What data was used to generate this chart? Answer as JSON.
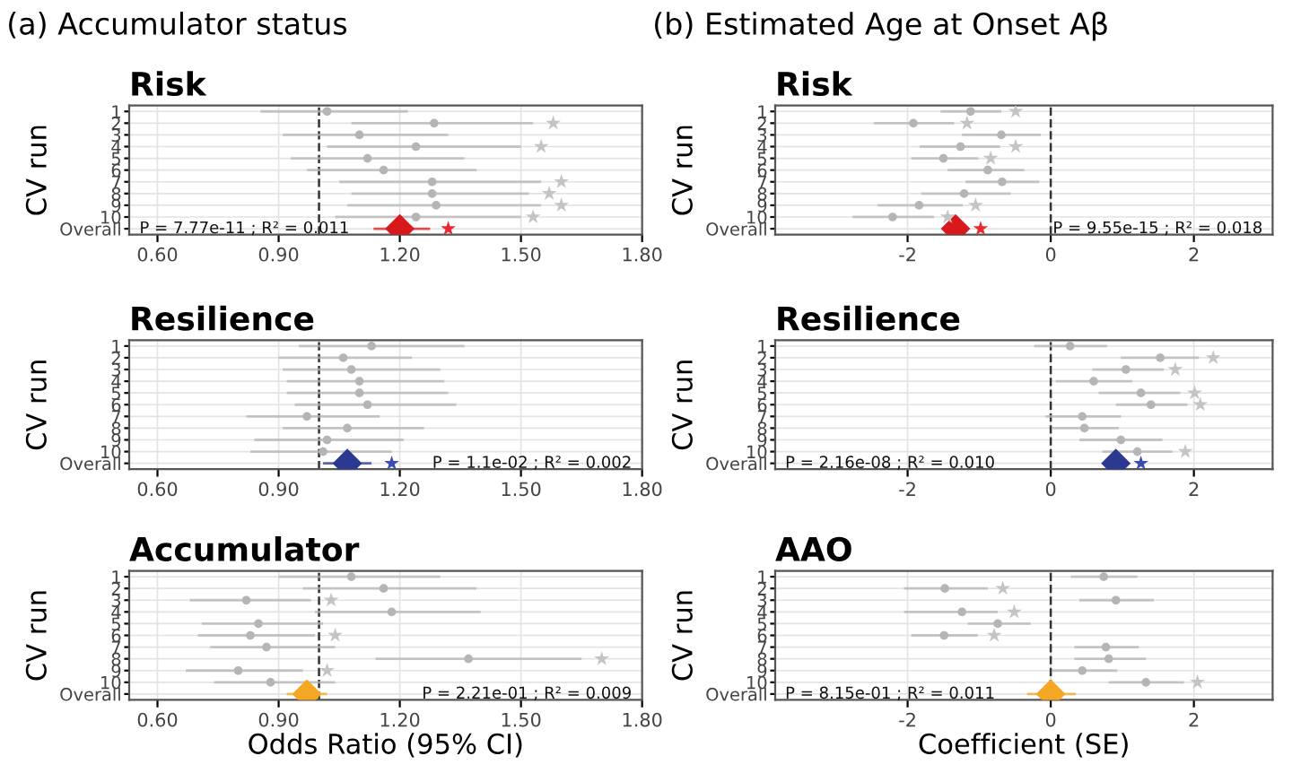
{
  "chart_data": [
    {
      "type": "scatter",
      "orientation": "horizontal",
      "subtitle": "(a) Accumulator status",
      "title": "Risk",
      "ylabel": "CV run",
      "categories": [
        "1",
        "2",
        "3",
        "4",
        "5",
        "6",
        "7",
        "8",
        "9",
        "10",
        "Overall"
      ],
      "xlim": [
        0.53,
        1.8
      ],
      "xticks": [
        {
          "value": 0.6,
          "label": "0.60"
        },
        {
          "value": 0.9,
          "label": "0.90"
        },
        {
          "value": 1.2,
          "label": "1.20"
        },
        {
          "value": 1.5,
          "label": "1.50"
        },
        {
          "value": 1.8,
          "label": "1.80"
        }
      ],
      "grid": true,
      "ref_lines": [
        {
          "axis": "x",
          "value": 1,
          "line_style": "dashed",
          "color": "#333333"
        }
      ],
      "annotations": [
        "P = 7.77e-11 ; R² = 0.011"
      ],
      "series": [
        {
          "marker": "circle",
          "color": "#b5b5b5",
          "values": [
            1.02,
            1.285,
            1.1,
            1.24,
            1.12,
            1.16,
            1.28,
            1.28,
            1.29,
            1.24,
            null
          ],
          "errors": [
            [
              0.855,
              1.22
            ],
            [
              1.08,
              1.53
            ],
            [
              0.91,
              1.32
            ],
            [
              1.02,
              1.5
            ],
            [
              0.93,
              1.36
            ],
            [
              0.97,
              1.39
            ],
            [
              1.05,
              1.55
            ],
            [
              1.08,
              1.52
            ],
            [
              1.07,
              1.55
            ],
            [
              1.04,
              1.5
            ],
            null
          ]
        },
        {
          "marker": "diamond",
          "color": "#d7191c",
          "values": [
            null,
            null,
            null,
            null,
            null,
            null,
            null,
            null,
            null,
            null,
            1.2
          ],
          "errors": [
            null,
            null,
            null,
            null,
            null,
            null,
            null,
            null,
            null,
            null,
            [
              1.135,
              1.275
            ]
          ]
        },
        {
          "marker": "star",
          "colors": [
            "#c4c4c4",
            "#c4c4c4",
            "#c4c4c4",
            "#c4c4c4",
            "#c4c4c4",
            "#c4c4c4",
            "#c4c4c4",
            "#c4c4c4",
            "#c4c4c4",
            "#c4c4c4",
            "#e8292d"
          ],
          "values": [
            null,
            1.58,
            null,
            1.55,
            null,
            null,
            1.6,
            1.57,
            1.6,
            1.53,
            1.32
          ]
        }
      ]
    },
    {
      "type": "scatter",
      "orientation": "horizontal",
      "subtitle": "(b) Estimated Age at Onset Aβ",
      "title": "Risk",
      "ylabel": "CV run",
      "categories": [
        "1",
        "2",
        "3",
        "4",
        "5",
        "6",
        "7",
        "8",
        "9",
        "10",
        "Overall"
      ],
      "xlim": [
        -3.85,
        3.1
      ],
      "xticks": [
        -2,
        0,
        2
      ],
      "grid": true,
      "ref_lines": [
        {
          "axis": "x",
          "value": 0,
          "line_style": "dashed",
          "color": "#333333"
        }
      ],
      "annotations": [
        "P = 9.55e-15 ; R² = 0.018"
      ],
      "series": [
        {
          "marker": "circle",
          "color": "#b5b5b5",
          "values": [
            -1.12,
            -1.92,
            -0.69,
            -1.26,
            -1.5,
            -0.88,
            -0.68,
            -1.21,
            -1.84,
            -2.21,
            null
          ],
          "errors": [
            [
              -1.54,
              -0.69
            ],
            [
              -2.47,
              -1.35
            ],
            [
              -1.24,
              -0.14
            ],
            [
              -1.83,
              -0.71
            ],
            [
              -1.95,
              -1.01
            ],
            [
              -1.44,
              -0.37
            ],
            [
              -1.19,
              -0.16
            ],
            [
              -1.81,
              -0.56
            ],
            [
              -2.42,
              -1.23
            ],
            [
              -2.77,
              -1.63
            ],
            null
          ]
        },
        {
          "marker": "diamond",
          "color": "#d7191c",
          "values": [
            null,
            null,
            null,
            null,
            null,
            null,
            null,
            null,
            null,
            null,
            -1.33
          ]
        },
        {
          "marker": "star",
          "colors": [
            "#c4c4c4",
            "#c4c4c4",
            "#c4c4c4",
            "#c4c4c4",
            "#c4c4c4",
            "#c4c4c4",
            "#c4c4c4",
            "#c4c4c4",
            "#c4c4c4",
            "#c4c4c4",
            "#e8292d"
          ],
          "values": [
            -0.49,
            -1.17,
            null,
            -0.49,
            -0.84,
            null,
            null,
            null,
            -1.05,
            -1.44,
            -0.98
          ]
        }
      ]
    },
    {
      "type": "scatter",
      "orientation": "horizontal",
      "title": "Resilience",
      "ylabel": "CV run",
      "categories": [
        "1",
        "2",
        "3",
        "4",
        "5",
        "6",
        "7",
        "8",
        "9",
        "10",
        "Overall"
      ],
      "xlim": [
        0.53,
        1.8
      ],
      "xticks": [
        {
          "value": 0.6,
          "label": "0.60"
        },
        {
          "value": 0.9,
          "label": "0.90"
        },
        {
          "value": 1.2,
          "label": "1.20"
        },
        {
          "value": 1.5,
          "label": "1.50"
        },
        {
          "value": 1.8,
          "label": "1.80"
        }
      ],
      "grid": true,
      "ref_lines": [
        {
          "axis": "x",
          "value": 1,
          "line_style": "dashed",
          "color": "#333333"
        }
      ],
      "annotations": [
        "P = 1.1e-02 ; R² = 0.002"
      ],
      "series": [
        {
          "marker": "circle",
          "color": "#b5b5b5",
          "values": [
            1.13,
            1.06,
            1.08,
            1.1,
            1.1,
            1.12,
            0.97,
            1.07,
            1.02,
            1.01,
            null
          ],
          "errors": [
            [
              0.95,
              1.36
            ],
            [
              0.9,
              1.23
            ],
            [
              0.91,
              1.3
            ],
            [
              0.92,
              1.31
            ],
            [
              0.92,
              1.32
            ],
            [
              0.94,
              1.34
            ],
            [
              0.82,
              1.15
            ],
            [
              0.91,
              1.26
            ],
            [
              0.84,
              1.21
            ],
            [
              0.83,
              1.18
            ],
            null
          ]
        },
        {
          "marker": "diamond",
          "color": "#2b3990",
          "values": [
            null,
            null,
            null,
            null,
            null,
            null,
            null,
            null,
            null,
            null,
            1.07
          ],
          "errors": [
            null,
            null,
            null,
            null,
            null,
            null,
            null,
            null,
            null,
            null,
            [
              1.01,
              1.13
            ]
          ]
        },
        {
          "marker": "star",
          "colors": [
            "#c4c4c4",
            "#c4c4c4",
            "#c4c4c4",
            "#c4c4c4",
            "#c4c4c4",
            "#c4c4c4",
            "#c4c4c4",
            "#c4c4c4",
            "#c4c4c4",
            "#c4c4c4",
            "#3a4db0"
          ],
          "values": [
            null,
            null,
            null,
            null,
            null,
            null,
            null,
            null,
            null,
            null,
            1.18
          ]
        }
      ]
    },
    {
      "type": "scatter",
      "orientation": "horizontal",
      "title": "Resilience",
      "ylabel": "CV run",
      "categories": [
        "1",
        "2",
        "3",
        "4",
        "5",
        "6",
        "7",
        "8",
        "9",
        "10",
        "Overall"
      ],
      "xlim": [
        -3.85,
        3.1
      ],
      "xticks": [
        -2,
        0,
        2
      ],
      "grid": true,
      "ref_lines": [
        {
          "axis": "x",
          "value": 0,
          "line_style": "dashed",
          "color": "#333333"
        }
      ],
      "annotations": [
        "P = 2.16e-08 ; R² = 0.010"
      ],
      "series": [
        {
          "marker": "circle",
          "color": "#b5b5b5",
          "values": [
            0.27,
            1.53,
            1.05,
            0.6,
            1.26,
            1.4,
            0.44,
            0.47,
            0.98,
            1.21,
            null
          ],
          "errors": [
            [
              -0.23,
              0.79
            ],
            [
              0.98,
              2.07
            ],
            [
              0.58,
              1.58
            ],
            [
              0.07,
              1.14
            ],
            [
              0.67,
              1.81
            ],
            [
              0.91,
              1.91
            ],
            [
              -0.07,
              0.98
            ],
            [
              0.02,
              0.95
            ],
            [
              0.4,
              1.56
            ],
            [
              0.72,
              1.7
            ],
            null
          ]
        },
        {
          "marker": "diamond",
          "color": "#2b3990",
          "values": [
            null,
            null,
            null,
            null,
            null,
            null,
            null,
            null,
            null,
            null,
            0.91
          ]
        },
        {
          "marker": "star",
          "colors": [
            "#c4c4c4",
            "#c4c4c4",
            "#c4c4c4",
            "#c4c4c4",
            "#c4c4c4",
            "#c4c4c4",
            "#c4c4c4",
            "#c4c4c4",
            "#c4c4c4",
            "#c4c4c4",
            "#3a4db0"
          ],
          "values": [
            null,
            2.27,
            1.74,
            null,
            2.01,
            2.09,
            null,
            null,
            null,
            1.88,
            1.26
          ]
        }
      ]
    },
    {
      "type": "scatter",
      "orientation": "horizontal",
      "title": "Accumulator",
      "ylabel": "CV run",
      "xlabel": "Odds Ratio (95% CI)",
      "categories": [
        "1",
        "2",
        "3",
        "4",
        "5",
        "6",
        "7",
        "8",
        "9",
        "10",
        "Overall"
      ],
      "xlim": [
        0.53,
        1.8
      ],
      "xticks": [
        {
          "value": 0.6,
          "label": "0.60"
        },
        {
          "value": 0.9,
          "label": "0.90"
        },
        {
          "value": 1.2,
          "label": "1.20"
        },
        {
          "value": 1.5,
          "label": "1.50"
        },
        {
          "value": 1.8,
          "label": "1.80"
        }
      ],
      "grid": true,
      "ref_lines": [
        {
          "axis": "x",
          "value": 1,
          "line_style": "dashed",
          "color": "#333333"
        }
      ],
      "annotations": [
        "P = 2.21e-01 ; R² = 0.009"
      ],
      "series": [
        {
          "marker": "circle",
          "color": "#b5b5b5",
          "values": [
            1.08,
            1.16,
            0.82,
            1.18,
            0.85,
            0.83,
            0.87,
            1.37,
            0.8,
            0.88,
            null
          ],
          "errors": [
            [
              0.9,
              1.3
            ],
            [
              0.96,
              1.39
            ],
            [
              0.68,
              0.98
            ],
            [
              0.99,
              1.4
            ],
            [
              0.71,
              1.01
            ],
            [
              0.7,
              0.99
            ],
            [
              0.73,
              1.04
            ],
            [
              1.14,
              1.65
            ],
            [
              0.67,
              0.96
            ],
            [
              0.74,
              1.04
            ],
            null
          ]
        },
        {
          "marker": "diamond",
          "color": "#f5a623",
          "values": [
            null,
            null,
            null,
            null,
            null,
            null,
            null,
            null,
            null,
            null,
            0.97
          ],
          "errors": [
            null,
            null,
            null,
            null,
            null,
            null,
            null,
            null,
            null,
            null,
            [
              0.92,
              1.02
            ]
          ]
        },
        {
          "marker": "star",
          "colors": [
            "#c4c4c4",
            "#c4c4c4",
            "#c4c4c4",
            "#c4c4c4",
            "#c4c4c4",
            "#c4c4c4",
            "#c4c4c4",
            "#c4c4c4",
            "#c4c4c4",
            "#c4c4c4",
            "#f5a623"
          ],
          "values": [
            null,
            null,
            1.03,
            null,
            null,
            1.04,
            null,
            1.7,
            1.02,
            null,
            null
          ]
        }
      ]
    },
    {
      "type": "scatter",
      "orientation": "horizontal",
      "title": "AAO",
      "ylabel": "CV run",
      "xlabel": "Coefficient (SE)",
      "categories": [
        "1",
        "2",
        "3",
        "4",
        "5",
        "6",
        "7",
        "8",
        "9",
        "10",
        "Overall"
      ],
      "xlim": [
        -3.85,
        3.1
      ],
      "xticks": [
        -2,
        0,
        2
      ],
      "grid": true,
      "ref_lines": [
        {
          "axis": "x",
          "value": 0,
          "line_style": "dashed",
          "color": "#333333"
        }
      ],
      "annotations": [
        "P = 8.15e-01 ; R² = 0.011"
      ],
      "series": [
        {
          "marker": "circle",
          "color": "#b5b5b5",
          "values": [
            0.74,
            -1.48,
            0.91,
            -1.24,
            -0.74,
            -1.49,
            0.77,
            0.81,
            0.44,
            1.33,
            null
          ],
          "errors": [
            [
              0.28,
              1.21
            ],
            [
              -2.05,
              -0.88
            ],
            [
              0.4,
              1.44
            ],
            [
              -2.05,
              -0.74
            ],
            [
              -1.16,
              -0.28
            ],
            [
              -1.95,
              -1.02
            ],
            [
              0.33,
              1.23
            ],
            [
              0.33,
              1.33
            ],
            [
              0.02,
              0.93
            ],
            [
              0.81,
              1.86
            ],
            null
          ]
        },
        {
          "marker": "diamond",
          "color": "#f5a623",
          "values": [
            null,
            null,
            null,
            null,
            null,
            null,
            null,
            null,
            null,
            null,
            0.0
          ],
          "errors": [
            null,
            null,
            null,
            null,
            null,
            null,
            null,
            null,
            null,
            null,
            [
              -0.33,
              0.35
            ]
          ]
        },
        {
          "marker": "star",
          "colors": [
            "#c4c4c4",
            "#c4c4c4",
            "#c4c4c4",
            "#c4c4c4",
            "#c4c4c4",
            "#c4c4c4",
            "#c4c4c4",
            "#c4c4c4",
            "#c4c4c4",
            "#c4c4c4",
            "#f5a623"
          ],
          "values": [
            null,
            -0.67,
            null,
            -0.51,
            null,
            -0.79,
            null,
            null,
            null,
            2.05,
            null
          ]
        }
      ]
    }
  ]
}
